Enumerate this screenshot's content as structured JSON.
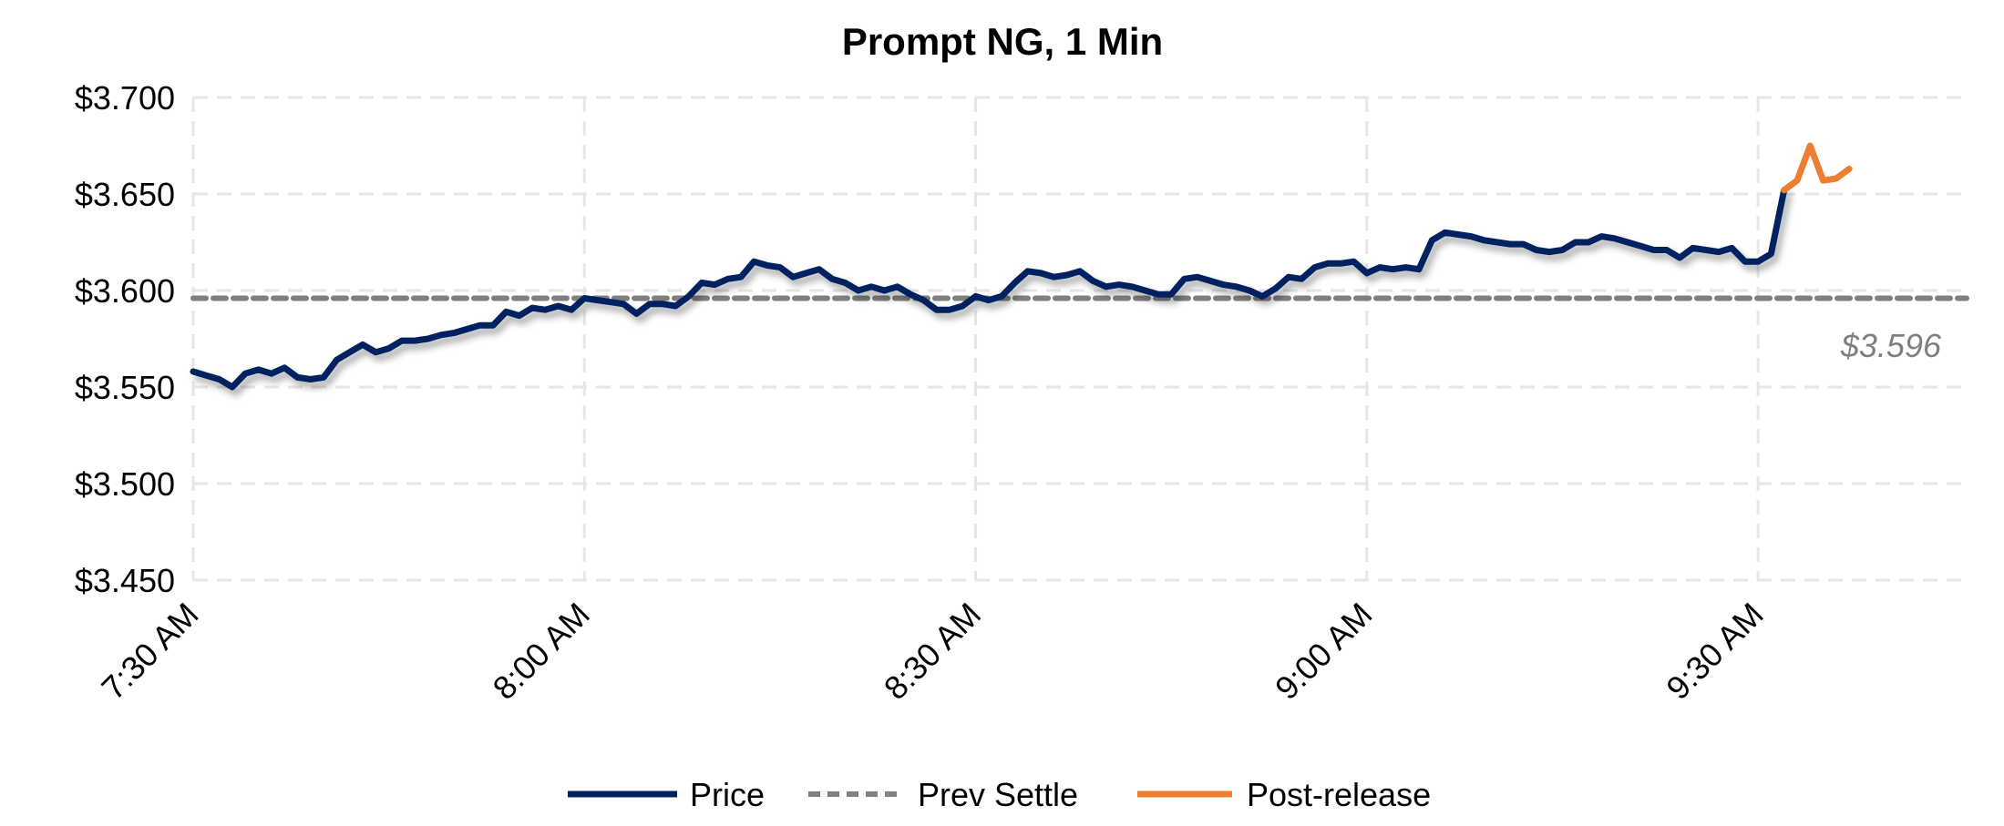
{
  "chart_data": {
    "type": "line",
    "title": "Prompt NG, 1 Min",
    "x_start": "7:30 AM",
    "x_step_minutes": 1,
    "xlim_minutes": [
      0,
      136
    ],
    "x_ticks": [
      "7:30 AM",
      "8:00 AM",
      "8:30 AM",
      "9:00 AM",
      "9:30 AM"
    ],
    "x_tick_minutes": [
      0,
      30,
      60,
      90,
      120
    ],
    "ylim": [
      3.45,
      3.7
    ],
    "y_ticks": [
      "$3.700",
      "$3.650",
      "$3.600",
      "$3.550",
      "$3.500",
      "$3.450"
    ],
    "y_tick_values": [
      3.7,
      3.65,
      3.6,
      3.55,
      3.5,
      3.45
    ],
    "grid": true,
    "legend_placement": "bottom",
    "series": [
      {
        "name": "Price",
        "color": "#002060",
        "start_minute": 0,
        "values": [
          3.558,
          3.556,
          3.554,
          3.55,
          3.557,
          3.559,
          3.557,
          3.56,
          3.555,
          3.554,
          3.555,
          3.564,
          3.568,
          3.572,
          3.568,
          3.57,
          3.574,
          3.574,
          3.575,
          3.577,
          3.578,
          3.58,
          3.582,
          3.582,
          3.589,
          3.587,
          3.591,
          3.59,
          3.592,
          3.59,
          3.596,
          3.595,
          3.594,
          3.593,
          3.588,
          3.593,
          3.593,
          3.592,
          3.597,
          3.604,
          3.603,
          3.606,
          3.607,
          3.615,
          3.613,
          3.612,
          3.607,
          3.609,
          3.611,
          3.606,
          3.604,
          3.6,
          3.602,
          3.6,
          3.602,
          3.598,
          3.595,
          3.59,
          3.59,
          3.592,
          3.597,
          3.595,
          3.597,
          3.604,
          3.61,
          3.609,
          3.607,
          3.608,
          3.61,
          3.605,
          3.602,
          3.603,
          3.602,
          3.6,
          3.598,
          3.598,
          3.606,
          3.607,
          3.605,
          3.603,
          3.602,
          3.6,
          3.597,
          3.601,
          3.607,
          3.606,
          3.612,
          3.614,
          3.614,
          3.615,
          3.609,
          3.612,
          3.611,
          3.612,
          3.611,
          3.626,
          3.63,
          3.629,
          3.628,
          3.626,
          3.625,
          3.624,
          3.624,
          3.621,
          3.62,
          3.621,
          3.625,
          3.625,
          3.628,
          3.627,
          3.625,
          3.623,
          3.621,
          3.621,
          3.617,
          3.622,
          3.621,
          3.62,
          3.622,
          3.615,
          3.615,
          3.619,
          3.652
        ]
      },
      {
        "name": "Prev Settle",
        "color": "#7f7f7f",
        "dashed": true,
        "value": 3.596,
        "label": "$3.596"
      },
      {
        "name": "Post-release",
        "color": "#ed7d31",
        "start_minute": 122,
        "values": [
          3.652,
          3.657,
          3.675,
          3.657,
          3.658,
          3.663
        ]
      }
    ]
  }
}
